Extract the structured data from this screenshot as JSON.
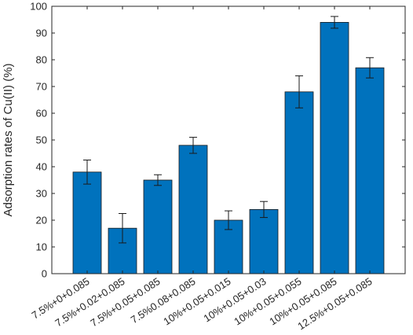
{
  "chart_data": {
    "type": "bar",
    "title": "",
    "xlabel": "",
    "ylabel": "Adsorption rates of Cu(II) (%)",
    "ylim": [
      0,
      100
    ],
    "yticks": [
      0,
      10,
      20,
      30,
      40,
      50,
      60,
      70,
      80,
      90,
      100
    ],
    "grid": false,
    "categories": [
      "7.5%+0+0.085",
      "7.5%+0.02+0.085",
      "7.5%+0.05+0.085",
      "7.5%0.08+0.085",
      "10%+0.05+0.015",
      "10%+0.05+0.03",
      "10%+0.05+0.055",
      "10%+0.05+0.085",
      "12.5%+0.05+0.085"
    ],
    "values": [
      38,
      17,
      35,
      48,
      20,
      24,
      68,
      94,
      77
    ],
    "errors": [
      4.5,
      5.5,
      2,
      3,
      3.5,
      3,
      6,
      2.2,
      3.8
    ],
    "colors": {
      "bar": "#0072BD",
      "bar_edge": "#1a1a1a",
      "axis": "#262626",
      "error": "#1a1a1a"
    }
  }
}
